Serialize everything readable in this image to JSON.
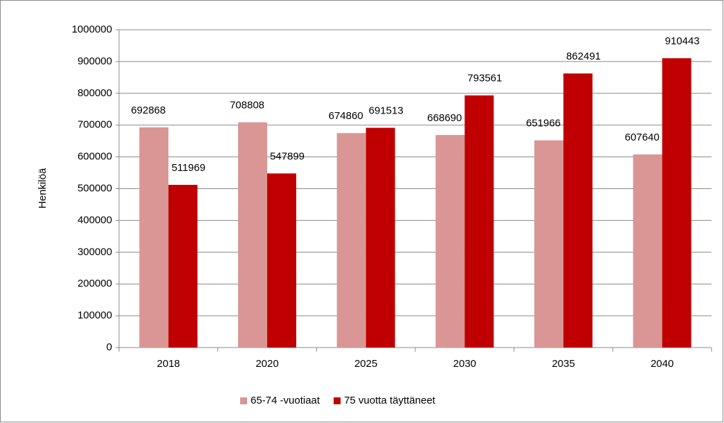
{
  "chart_data": {
    "type": "bar",
    "y_label": "Henkilöä",
    "categories": [
      "2018",
      "2020",
      "2025",
      "2030",
      "2035",
      "2040"
    ],
    "series": [
      {
        "name": "65-74 -vuotiaat",
        "color": "#d99694",
        "values": [
          692868,
          708808,
          674860,
          668690,
          651966,
          607640
        ]
      },
      {
        "name": "75 vuotta täyttäneet",
        "color": "#c00000",
        "values": [
          511969,
          547899,
          691513,
          793561,
          862491,
          910443
        ]
      }
    ],
    "ylim": [
      0,
      1000000
    ],
    "yticks": [
      0,
      100000,
      200000,
      300000,
      400000,
      500000,
      600000,
      700000,
      800000,
      900000,
      1000000
    ],
    "grid": true,
    "legend": "bottom"
  }
}
